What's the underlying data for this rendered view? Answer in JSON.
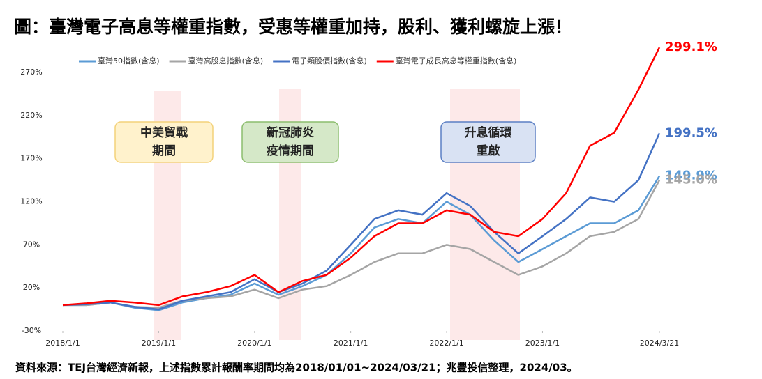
{
  "chart_data": {
    "type": "line",
    "title": "圖：臺灣電子高息等權重指數，受惠等權重加持，股利、獲利螺旋上漲！",
    "source": "資料來源：TEJ台灣經濟新報，上述指數累計報酬率期間均為2018/01/01~2024/03/21；兆豐投信整理，2024/03。",
    "x": [
      "2018/1/1",
      "2018/4/1",
      "2018/7/1",
      "2018/10/1",
      "2019/1/1",
      "2019/4/1",
      "2019/7/1",
      "2019/10/1",
      "2020/1/1",
      "2020/4/1",
      "2020/7/1",
      "2020/10/1",
      "2021/1/1",
      "2021/4/1",
      "2021/7/1",
      "2021/10/1",
      "2022/1/1",
      "2022/4/1",
      "2022/7/1",
      "2022/10/1",
      "2023/1/1",
      "2023/4/1",
      "2023/7/1",
      "2023/10/1",
      "2024/1/1",
      "2024/3/21"
    ],
    "xlim": [
      "2018/1/1",
      "2024/3/21"
    ],
    "xticks": [
      "2018/1/1",
      "2019/1/1",
      "2020/1/1",
      "2021/1/1",
      "2022/1/1",
      "2023/1/1",
      "2024/3/21"
    ],
    "ylim": [
      -30,
      300
    ],
    "yticks": [
      {
        "value": -30,
        "label": "-30%"
      },
      {
        "value": 20,
        "label": "20%"
      },
      {
        "value": 70,
        "label": "70%"
      },
      {
        "value": 120,
        "label": "120%"
      },
      {
        "value": 170,
        "label": "170%"
      },
      {
        "value": 220,
        "label": "220%"
      },
      {
        "value": 270,
        "label": "270%"
      }
    ],
    "grid": false,
    "legend": "top",
    "annotations": [
      {
        "lines": [
          "中美貿戰",
          "期間"
        ],
        "color": "#fff2cc",
        "border": "#f4d27a"
      },
      {
        "lines": [
          "新冠肺炎",
          "疫情期間"
        ],
        "color": "#d5e8c8",
        "border": "#8cbd6e"
      },
      {
        "lines": [
          "升息循環",
          "重啟"
        ],
        "color": "#d9e2f3",
        "border": "#5b7fc4"
      }
    ],
    "series": [
      {
        "name": "臺灣50指數(含息)",
        "color": "#5b9bd5",
        "values": [
          0,
          0,
          3,
          -3,
          -6,
          3,
          8,
          12,
          25,
          12,
          22,
          35,
          60,
          90,
          100,
          95,
          120,
          105,
          75,
          50,
          65,
          80,
          95,
          95,
          110,
          149.9
        ],
        "value_labels": [
          null,
          null,
          null,
          null,
          null,
          null,
          null,
          null,
          null,
          null,
          null,
          null,
          null,
          null,
          null,
          null,
          null,
          null,
          null,
          null,
          null,
          null,
          null,
          null,
          null,
          "149.9%"
        ]
      },
      {
        "name": "臺灣高股息指數(含息)",
        "color": "#a5a5a5",
        "values": [
          0,
          0,
          3,
          -2,
          -3,
          5,
          8,
          10,
          18,
          8,
          18,
          22,
          35,
          50,
          60,
          60,
          70,
          65,
          50,
          35,
          45,
          60,
          80,
          85,
          100,
          145.0
        ],
        "value_labels": [
          null,
          null,
          null,
          null,
          null,
          null,
          null,
          null,
          null,
          null,
          null,
          null,
          null,
          null,
          null,
          null,
          null,
          null,
          null,
          null,
          null,
          null,
          null,
          null,
          null,
          "145.0%"
        ]
      },
      {
        "name": "電子類股價指數(含息)",
        "color": "#4472c4",
        "values": [
          0,
          1,
          3,
          -2,
          -5,
          5,
          10,
          15,
          30,
          15,
          25,
          40,
          70,
          100,
          110,
          105,
          130,
          115,
          85,
          60,
          80,
          100,
          125,
          120,
          145,
          199.5
        ],
        "value_labels": [
          null,
          null,
          null,
          null,
          null,
          null,
          null,
          null,
          null,
          null,
          null,
          null,
          null,
          null,
          null,
          null,
          null,
          null,
          null,
          null,
          null,
          null,
          null,
          null,
          null,
          "199.5%"
        ]
      },
      {
        "name": "臺灣電子成長高息等權重指數(含息)",
        "color": "#ff0000",
        "values": [
          0,
          2,
          5,
          3,
          0,
          10,
          15,
          22,
          35,
          15,
          28,
          35,
          55,
          80,
          95,
          95,
          110,
          105,
          85,
          80,
          100,
          130,
          185,
          200,
          250,
          299.1
        ],
        "value_labels": [
          null,
          null,
          null,
          null,
          null,
          null,
          null,
          null,
          null,
          null,
          null,
          null,
          null,
          null,
          null,
          null,
          null,
          null,
          null,
          null,
          null,
          null,
          null,
          null,
          null,
          "299.1%"
        ]
      }
    ]
  }
}
